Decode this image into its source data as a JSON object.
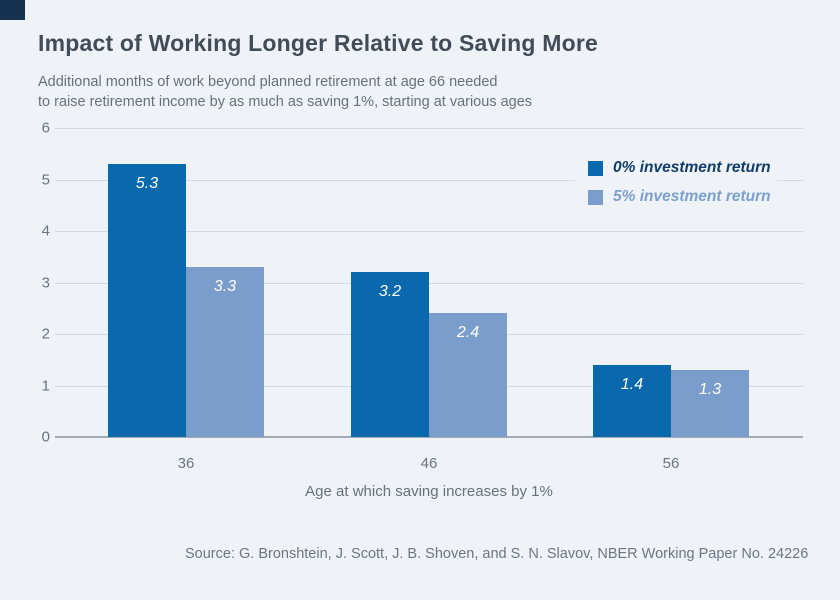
{
  "page": {
    "title": "Impact of Working Longer Relative to Saving More",
    "subtitle_line1": "Additional months of work beyond planned retirement at age 66 needed",
    "subtitle_line2": "to raise retirement income by as much as saving 1%, starting at various ages",
    "source": "Source: G. Bronshtein, J. Scott, J. B. Shoven, and S. N. Slavov, NBER Working Paper No. 24226"
  },
  "colors": {
    "background": "#eff3f8",
    "corner_mark": "#14314f",
    "title_text": "#424c57",
    "subtitle_text": "#67717a",
    "gridline": "#d2dae1",
    "axis_baseline": "#a2abb3",
    "tick_text": "#6b747d",
    "bar_dark_blue": "#0a68ad",
    "bar_light_blue": "#7b9dcb",
    "legend_dark_text": "#113d68",
    "legend_light_text": "#7aa0cc",
    "bar_value_text": "#ffffff"
  },
  "chart_data": {
    "type": "bar",
    "title": "Impact of Working Longer Relative to Saving More",
    "subtitle": "Additional months of work beyond planned retirement at age 66 needed to raise retirement income by as much as saving 1%, starting at various ages",
    "categories": [
      "36",
      "46",
      "56"
    ],
    "series": [
      {
        "name": "0% investment return",
        "color": "#0a68ad",
        "label_text_color": "#113d68",
        "values": [
          5.3,
          3.2,
          1.4
        ]
      },
      {
        "name": "5% investment return",
        "color": "#7b9dcb",
        "label_text_color": "#7aa0cc",
        "values": [
          3.3,
          2.4,
          1.3
        ]
      }
    ],
    "xlabel": "Age at which saving increases by 1%",
    "ylabel": "",
    "ylim": [
      0,
      6
    ],
    "y_ticks": [
      6,
      5,
      4,
      3,
      2,
      1,
      0
    ],
    "grid": true,
    "legend_position": "top-right",
    "value_label_decimals": 1
  }
}
